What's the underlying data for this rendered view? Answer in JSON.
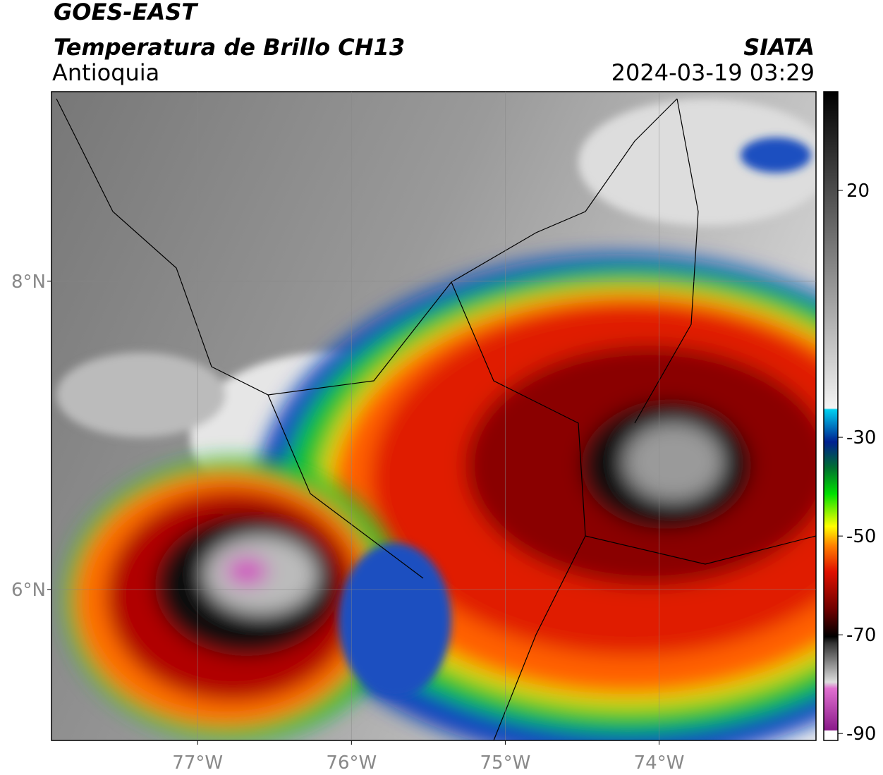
{
  "header": {
    "title": "GOES-EAST",
    "subtitle": "Temperatura de Brillo CH13",
    "region": "Antioquia",
    "source": "SIATA",
    "datetime": "2024-03-19 03:29"
  },
  "map": {
    "xlim": [
      -77.95,
      -72.98
    ],
    "ylim": [
      5.02,
      9.23
    ],
    "xticks": [
      {
        "value": -77,
        "label": "77°W"
      },
      {
        "value": -76,
        "label": "76°W"
      },
      {
        "value": -75,
        "label": "75°W"
      },
      {
        "value": -74,
        "label": "74°W"
      }
    ],
    "yticks": [
      {
        "value": 8,
        "label": "8°N"
      },
      {
        "value": 6,
        "label": "6°N"
      }
    ]
  },
  "colorbar": {
    "lim": [
      -91.4,
      40
    ],
    "ticks": [
      20,
      -30,
      -50,
      -70,
      -90
    ]
  }
}
